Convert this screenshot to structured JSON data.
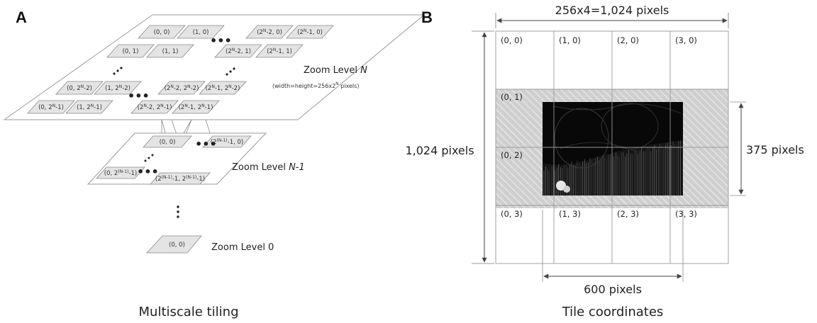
{
  "panel_a": {
    "letter": "A",
    "caption": "Multiscale tiling",
    "level_n": {
      "label": "Zoom Level ",
      "label_var": "N",
      "sublabel": "(width=height=256x2",
      "sublabel_sup": "N",
      "sublabel_end": " pixels)",
      "tiles": [
        {
          "t": "(0, 0)"
        },
        {
          "t": "(1, 0)"
        },
        {
          "b": "(2",
          "s": "N",
          "e": "-2, 0)"
        },
        {
          "b": "(2",
          "s": "N",
          "e": "-1, 0)"
        },
        {
          "t": "(0, 1)"
        },
        {
          "t": "(1, 1)"
        },
        {
          "b": "(2",
          "s": "N",
          "e": "-2, 1)"
        },
        {
          "b": "(2",
          "s": "N",
          "e": "-1, 1)"
        },
        {
          "b": "(0, 2",
          "s": "N",
          "e": "-2)"
        },
        {
          "b": "(1, 2",
          "s": "N",
          "e": "-2)"
        },
        {
          "b": "(2",
          "s": "N",
          "e": "-2, 2",
          "s2": "N",
          "e2": "-2)"
        },
        {
          "b": "(2",
          "s": "N",
          "e": "-1, 2",
          "s2": "N",
          "e2": "-2)"
        },
        {
          "b": "(0, 2",
          "s": "N",
          "e": "-1)"
        },
        {
          "b": "(1, 2",
          "s": "N",
          "e": "-1)"
        },
        {
          "b": "(2",
          "s": "N",
          "e": "-2, 2",
          "s2": "N",
          "e2": "-1)"
        },
        {
          "b": "(2",
          "s": "N",
          "e": "-1, 2",
          "s2": "N",
          "e2": "-1)"
        }
      ]
    },
    "level_n1": {
      "label": "Zoom Level ",
      "label_var": "N-1",
      "tiles": [
        {
          "t": "(0, 0)"
        },
        {
          "b": "(2",
          "s": "(N-1)",
          "e": "-1, 0)"
        },
        {
          "b": "(0, 2",
          "s": "(N-1)",
          "e": "-1)"
        },
        {
          "b": "(2",
          "s": "(N-1)",
          "e": "-1, 2",
          "s2": "(N-1)",
          "e2": "-1)"
        }
      ]
    },
    "level_0": {
      "label": "Zoom Level 0",
      "tile": "(0, 0)"
    }
  },
  "panel_b": {
    "letter": "B",
    "caption": "Tile coordinates",
    "width_label": "256x4=1,024 pixels",
    "height_label": "1,024 pixels",
    "image_height_label": "375 pixels",
    "image_width_label": "600 pixels",
    "coords": [
      "(0, 0)",
      "(1, 0)",
      "(2, 0)",
      "(3, 0)",
      "(0, 1)",
      "(0, 2)",
      "(0, 3)",
      "(1, 3)",
      "(2, 3)",
      "(3, 3)"
    ]
  }
}
